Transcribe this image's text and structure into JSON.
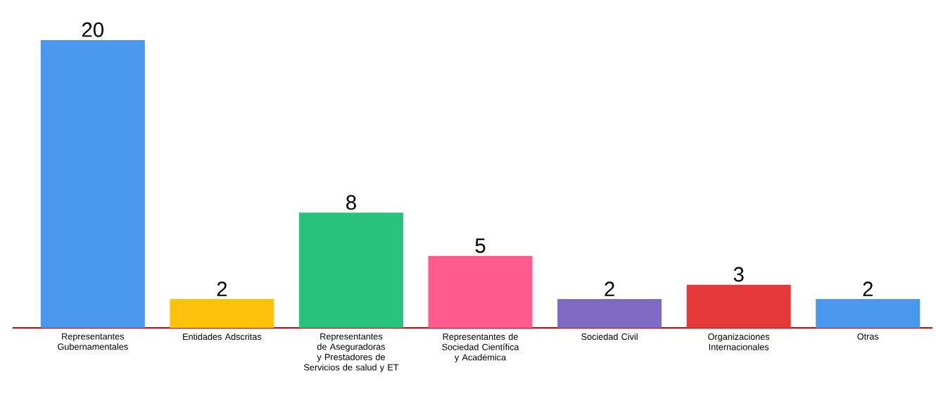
{
  "chart_data": {
    "type": "bar",
    "categories": [
      "Representantes Gubernamentales",
      "Entidades Adscritas",
      "Representantes de Aseguradoras y Prestadores de Servicios de salud y ET",
      "Representantes de Sociedad Científica y Académica",
      "Sociedad Civil",
      "Organizaciones Internacionales",
      "Otras"
    ],
    "values": [
      20,
      2,
      8,
      5,
      2,
      3,
      2
    ],
    "colors": [
      "#4a98ee",
      "#ffc20a",
      "#28c27c",
      "#ff5c8d",
      "#7e6bc4",
      "#e53838",
      "#4a98ee"
    ],
    "data_labels": true
  }
}
